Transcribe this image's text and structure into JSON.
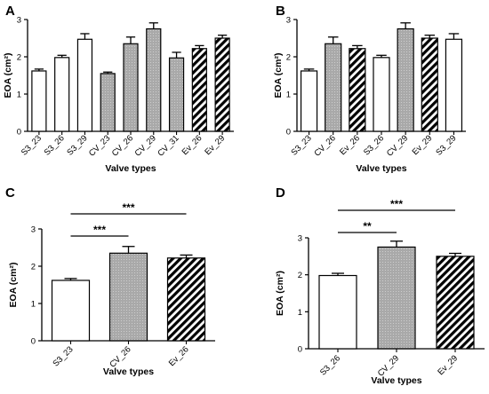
{
  "chart_data": [
    {
      "panel": "A",
      "type": "bar",
      "categories": [
        "S3_23",
        "S3_26",
        "S3_29",
        "CV_23",
        "CV_26",
        "CV_29",
        "CV_31",
        "Ev_26",
        "Ev_29"
      ],
      "values": [
        1.62,
        1.98,
        2.47,
        1.55,
        2.35,
        2.75,
        1.97,
        2.22,
        2.5
      ],
      "errors": [
        0.05,
        0.06,
        0.15,
        0.04,
        0.18,
        0.16,
        0.15,
        0.08,
        0.08
      ],
      "fills": [
        "white",
        "white",
        "white",
        "gray",
        "gray",
        "gray",
        "gray",
        "hatch",
        "hatch"
      ],
      "xlabel": "Valve types",
      "ylabel": "EOA (cm²)",
      "ylim": [
        0,
        3
      ],
      "yticks": [
        "0",
        "1",
        "2",
        "3"
      ]
    },
    {
      "panel": "B",
      "type": "bar",
      "categories": [
        "S3_23",
        "CV_26",
        "Ev_26",
        "S3_26",
        "CV_29",
        "Ev_29",
        "S3_29"
      ],
      "values": [
        1.62,
        2.35,
        2.22,
        1.98,
        2.75,
        2.5,
        2.47
      ],
      "errors": [
        0.05,
        0.18,
        0.08,
        0.06,
        0.16,
        0.08,
        0.15
      ],
      "fills": [
        "white",
        "gray",
        "hatch",
        "white",
        "gray",
        "hatch",
        "white"
      ],
      "xlabel": "Valve types",
      "ylabel": "EOA (cm²)",
      "ylim": [
        0,
        3
      ],
      "yticks": [
        "0",
        "1",
        "2",
        "3"
      ]
    },
    {
      "panel": "C",
      "type": "bar",
      "categories": [
        "S3_23",
        "CV_26",
        "Ev_26"
      ],
      "values": [
        1.62,
        2.35,
        2.22
      ],
      "errors": [
        0.05,
        0.18,
        0.08
      ],
      "fills": [
        "white",
        "gray",
        "hatch"
      ],
      "xlabel": "Valve types",
      "ylabel": "EOA (cm²)",
      "ylim": [
        0,
        3
      ],
      "yticks": [
        "0",
        "1",
        "2",
        "3"
      ],
      "annotations": [
        {
          "text": "***",
          "from": 0,
          "to": 2
        },
        {
          "text": "***",
          "from": 0,
          "to": 1
        }
      ]
    },
    {
      "panel": "D",
      "type": "bar",
      "categories": [
        "S3_26",
        "CV_29",
        "Ev_29"
      ],
      "values": [
        1.98,
        2.75,
        2.5
      ],
      "errors": [
        0.06,
        0.16,
        0.08
      ],
      "fills": [
        "white",
        "gray",
        "hatch"
      ],
      "xlabel": "Valve types",
      "ylabel": "EOA (cm²)",
      "ylim": [
        0,
        3
      ],
      "yticks": [
        "0",
        "1",
        "2",
        "3"
      ],
      "annotations": [
        {
          "text": "***",
          "from": 0,
          "to": 2
        },
        {
          "text": "**",
          "from": 0,
          "to": 1
        }
      ]
    }
  ]
}
